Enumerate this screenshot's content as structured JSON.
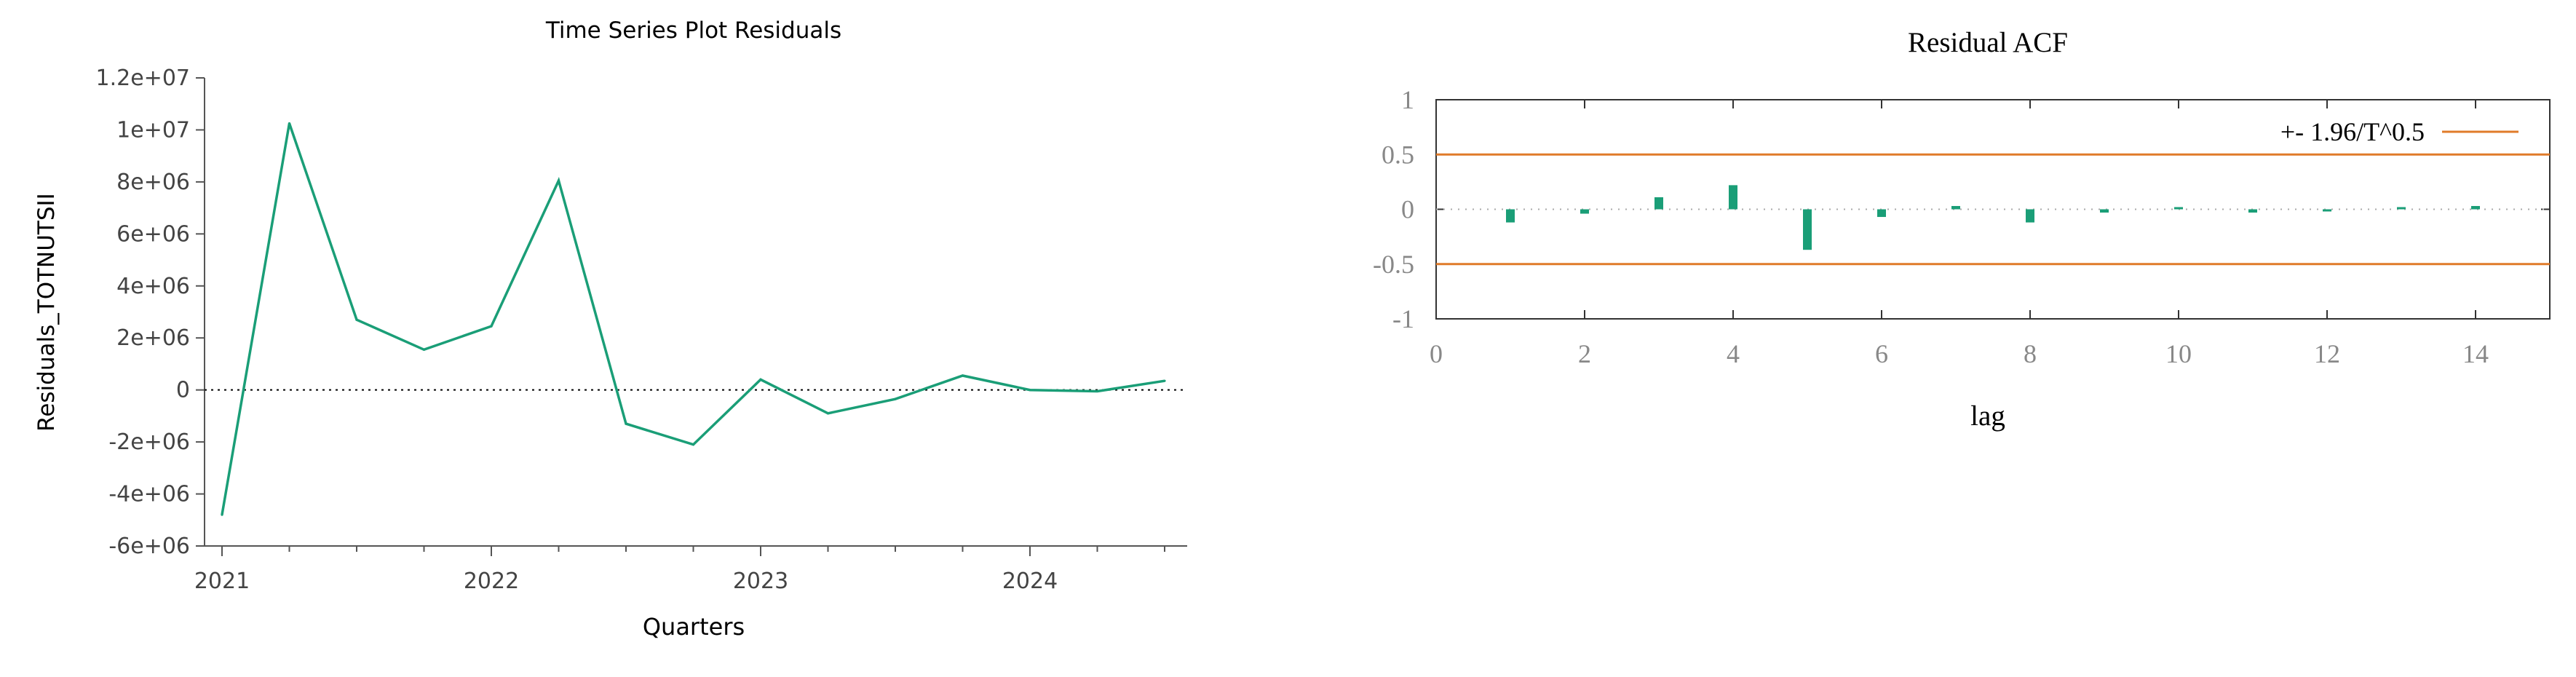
{
  "chart_data": [
    {
      "type": "line",
      "title": "Time Series Plot Residuals",
      "xlabel": "Quarters",
      "ylabel": "Residuals_TOTNUTSII",
      "x": [
        "2021:1",
        "2021:2",
        "2021:3",
        "2021:4",
        "2022:1",
        "2022:2",
        "2022:3",
        "2022:4",
        "2023:1",
        "2023:2",
        "2023:3",
        "2023:4",
        "2024:1",
        "2024:2",
        "2024:3"
      ],
      "series": [
        {
          "values": [
            -4800000,
            10250000,
            2700000,
            1550000,
            2450000,
            8050000,
            -1300000,
            -2100000,
            400000,
            -900000,
            -350000,
            550000,
            0,
            -50000,
            350000
          ]
        }
      ],
      "xticks": [
        "2021",
        "2022",
        "2023",
        "2024"
      ],
      "yticks": [
        "-6e+06",
        "-4e+06",
        "-2e+06",
        "0",
        "2e+06",
        "4e+06",
        "6e+06",
        "8e+06",
        "1e+07",
        "1.2e+07"
      ],
      "ylim": [
        -6000000,
        12000000
      ],
      "zero_line": true,
      "line_color": "#1a9e77"
    },
    {
      "type": "bar",
      "title": "Residual ACF",
      "xlabel": "lag",
      "ylabel": "",
      "lags": [
        1,
        2,
        3,
        4,
        5,
        6,
        7,
        8,
        9,
        10,
        11,
        12,
        13,
        14
      ],
      "values": [
        -0.12,
        -0.04,
        0.11,
        0.22,
        -0.37,
        -0.07,
        0.03,
        -0.12,
        -0.03,
        0.0,
        -0.03,
        -0.01,
        0.0,
        0.03
      ],
      "xlim": [
        0,
        15
      ],
      "ylim": [
        -1,
        1
      ],
      "xticks": [
        "0",
        "2",
        "4",
        "6",
        "8",
        "10",
        "12",
        "14"
      ],
      "yticks": [
        "-1",
        "-0.5",
        "0",
        "0.5",
        "1"
      ],
      "band": 0.5,
      "legend": "+- 1.96/T^0.5",
      "legend_position": "top-right",
      "bar_color": "#1a9e77",
      "band_color": "#e07b2a"
    }
  ]
}
